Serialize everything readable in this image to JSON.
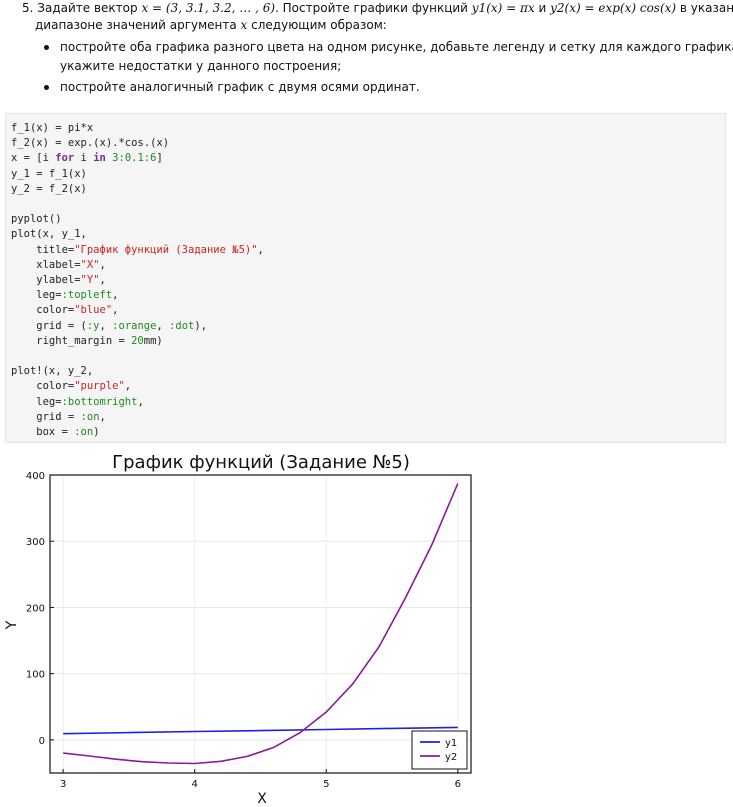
{
  "task": {
    "number": "5.",
    "line1_a": "Задайте вектор ",
    "line1_vec": "x = (3, 3.1, 3.2, … , 6)",
    "line1_b": ". Постройте графики функций ",
    "line1_f1": "y1(x) = πx",
    "line1_and": " и ",
    "line1_f2": "y2(x) = exp(x) cos(x)",
    "line1_c": " в указанном",
    "line2_a": "диапазоне значений аргумента ",
    "line2_x": "x",
    "line2_b": " следующим образом:",
    "bullet1_a": "постройте оба графика разного цвета на одном рисунке, добавьте легенду и сетку для каждого графика;",
    "bullet1_b": "укажите недостатки у данного построения;",
    "bullet2": "постройте аналогичный график с двумя осями ординат."
  },
  "code": {
    "l1": "f_1(x) = pi*x",
    "l2": "f_2(x) = exp.(x).*cos.(x)",
    "l3a": "x = [i ",
    "l3_for": "for",
    "l3b": " i ",
    "l3_in": "in",
    "l3_range": " 3:0.1:6",
    "l3c": "]",
    "l4": "y_1 = f_1(x)",
    "l5": "y_2 = f_2(x)",
    "l7": "pyplot()",
    "l8": "plot(x, y_1,",
    "l9a": "    title=",
    "l9s": "\"График функций (Задание №5)\"",
    "l9b": ",",
    "l10a": "    xlabel=",
    "l10s": "\"X\"",
    "l10b": ",",
    "l11a": "    ylabel=",
    "l11s": "\"Y\"",
    "l11b": ",",
    "l12a": "    leg=",
    "l12sym": ":topleft",
    "l12b": ",",
    "l13a": "    color=",
    "l13s": "\"blue\"",
    "l13b": ",",
    "l14a": "    grid = (",
    "l14sym1": ":y",
    "l14m1": ", ",
    "l14sym2": ":orange",
    "l14m2": ", ",
    "l14sym3": ":dot",
    "l14b": "),",
    "l15a": "    right_margin = ",
    "l15n": "20",
    "l15b": "mm)",
    "l17": "plot!(x, y_2,",
    "l18a": "    color=",
    "l18s": "\"purple\"",
    "l18b": ",",
    "l19a": "    leg=",
    "l19sym": ":bottomright",
    "l19b": ",",
    "l20a": "    grid = ",
    "l20sym": ":on",
    "l20b": ",",
    "l21a": "    box = ",
    "l21sym": ":on",
    "l21b": ")"
  },
  "chart_data": {
    "type": "line",
    "title": "График функций (Задание №5)",
    "xlabel": "X",
    "ylabel": "Y",
    "xlim": [
      2.9,
      6.1
    ],
    "ylim": [
      -50,
      400
    ],
    "xticks": [
      "3",
      "4",
      "5",
      "6"
    ],
    "yticks": [
      "0",
      "100",
      "200",
      "300",
      "400"
    ],
    "legend_position": "bottom-right",
    "grid": true,
    "series": [
      {
        "name": "y1",
        "color": "#2020e0",
        "x": [
          3.0,
          3.5,
          4.0,
          4.5,
          5.0,
          5.5,
          6.0
        ],
        "y": [
          9.4,
          11.0,
          12.6,
          14.1,
          15.7,
          17.3,
          18.8
        ]
      },
      {
        "name": "y2",
        "color": "#8b1a9a",
        "x": [
          3.0,
          3.2,
          3.4,
          3.6,
          3.8,
          4.0,
          4.2,
          4.4,
          4.6,
          4.8,
          5.0,
          5.2,
          5.4,
          5.6,
          5.8,
          6.0
        ],
        "y": [
          -19.9,
          -24.4,
          -29.1,
          -32.9,
          -34.9,
          -35.7,
          -32.4,
          -24.9,
          -11.4,
          10.8,
          42.1,
          84.3,
          140.3,
          213.6,
          293.5,
          387.1
        ]
      }
    ]
  }
}
